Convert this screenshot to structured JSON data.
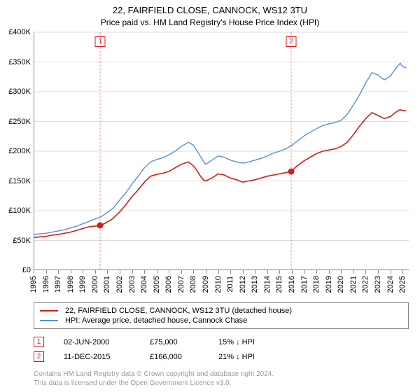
{
  "title": "22, FAIRFIELD CLOSE, CANNOCK, WS12 3TU",
  "subtitle": "Price paid vs. HM Land Registry's House Price Index (HPI)",
  "chart": {
    "type": "line",
    "background_color": "#ffffff",
    "grid_color": "#dddddd",
    "axis_color": "#888888",
    "ylabel_prefix": "£",
    "ylim": [
      0,
      400000
    ],
    "ytick_step": 50000,
    "ytick_labels": [
      "£0",
      "£50K",
      "£100K",
      "£150K",
      "£200K",
      "£250K",
      "£300K",
      "£350K",
      "£400K"
    ],
    "xlim": [
      1995,
      2025.5
    ],
    "xtick_start": 1995,
    "xtick_end": 2025,
    "xtick_step": 1,
    "xtick_rotation_deg": -90,
    "label_fontsize": 11,
    "title_fontsize": 13,
    "series": [
      {
        "name": "property",
        "label": "22, FAIRFIELD CLOSE, CANNOCK, WS12 3TU (detached house)",
        "color": "#d91a1a",
        "line_width": 1.6,
        "data": [
          [
            1995,
            55000
          ],
          [
            1995.5,
            56000
          ],
          [
            1996,
            57000
          ],
          [
            1996.5,
            59000
          ],
          [
            1997,
            60000
          ],
          [
            1997.5,
            62000
          ],
          [
            1998,
            64000
          ],
          [
            1998.5,
            67000
          ],
          [
            1999,
            70000
          ],
          [
            1999.5,
            73000
          ],
          [
            2000,
            74000
          ],
          [
            2000.42,
            75000
          ],
          [
            2000.9,
            80000
          ],
          [
            2001.4,
            86000
          ],
          [
            2002,
            98000
          ],
          [
            2002.5,
            110000
          ],
          [
            2003,
            124000
          ],
          [
            2003.5,
            135000
          ],
          [
            2004,
            148000
          ],
          [
            2004.5,
            158000
          ],
          [
            2005,
            161000
          ],
          [
            2005.5,
            163000
          ],
          [
            2006,
            166000
          ],
          [
            2006.5,
            172000
          ],
          [
            2007,
            178000
          ],
          [
            2007.6,
            182000
          ],
          [
            2008,
            175000
          ],
          [
            2008.2,
            170000
          ],
          [
            2008.5,
            160000
          ],
          [
            2008.8,
            152000
          ],
          [
            2009,
            150000
          ],
          [
            2009.5,
            155000
          ],
          [
            2010,
            162000
          ],
          [
            2010.5,
            160000
          ],
          [
            2011,
            155000
          ],
          [
            2011.5,
            152000
          ],
          [
            2012,
            148000
          ],
          [
            2012.5,
            150000
          ],
          [
            2013,
            152000
          ],
          [
            2013.5,
            155000
          ],
          [
            2014,
            158000
          ],
          [
            2014.5,
            160000
          ],
          [
            2015,
            162000
          ],
          [
            2015.5,
            164000
          ],
          [
            2015.94,
            166000
          ],
          [
            2016.4,
            175000
          ],
          [
            2017,
            184000
          ],
          [
            2017.5,
            190000
          ],
          [
            2018,
            196000
          ],
          [
            2018.5,
            200000
          ],
          [
            2019,
            202000
          ],
          [
            2019.5,
            204000
          ],
          [
            2020,
            208000
          ],
          [
            2020.5,
            215000
          ],
          [
            2021,
            228000
          ],
          [
            2021.5,
            242000
          ],
          [
            2022,
            255000
          ],
          [
            2022.5,
            265000
          ],
          [
            2023,
            260000
          ],
          [
            2023.5,
            255000
          ],
          [
            2024,
            258000
          ],
          [
            2024.4,
            265000
          ],
          [
            2024.8,
            270000
          ],
          [
            2025,
            268000
          ],
          [
            2025.3,
            268000
          ]
        ]
      },
      {
        "name": "hpi",
        "label": "HPI: Average price, detached house, Cannock Chase",
        "color": "#5b8fd6",
        "line_width": 1.4,
        "data": [
          [
            1995,
            60000
          ],
          [
            1995.5,
            61000
          ],
          [
            1996,
            62000
          ],
          [
            1996.5,
            64000
          ],
          [
            1997,
            66000
          ],
          [
            1997.5,
            68000
          ],
          [
            1998,
            71000
          ],
          [
            1998.5,
            74000
          ],
          [
            1999,
            78000
          ],
          [
            1999.5,
            82000
          ],
          [
            2000,
            86000
          ],
          [
            2000.5,
            90000
          ],
          [
            2001,
            97000
          ],
          [
            2001.5,
            105000
          ],
          [
            2002,
            118000
          ],
          [
            2002.5,
            130000
          ],
          [
            2003,
            145000
          ],
          [
            2003.5,
            158000
          ],
          [
            2004,
            172000
          ],
          [
            2004.5,
            182000
          ],
          [
            2005,
            186000
          ],
          [
            2005.5,
            189000
          ],
          [
            2006,
            194000
          ],
          [
            2006.5,
            200000
          ],
          [
            2007,
            208000
          ],
          [
            2007.6,
            215000
          ],
          [
            2008,
            210000
          ],
          [
            2008.3,
            200000
          ],
          [
            2008.6,
            190000
          ],
          [
            2008.9,
            180000
          ],
          [
            2009,
            178000
          ],
          [
            2009.5,
            185000
          ],
          [
            2010,
            192000
          ],
          [
            2010.5,
            190000
          ],
          [
            2011,
            185000
          ],
          [
            2011.5,
            182000
          ],
          [
            2012,
            180000
          ],
          [
            2012.5,
            182000
          ],
          [
            2013,
            185000
          ],
          [
            2013.5,
            188000
          ],
          [
            2014,
            192000
          ],
          [
            2014.5,
            197000
          ],
          [
            2015,
            200000
          ],
          [
            2015.5,
            204000
          ],
          [
            2016,
            210000
          ],
          [
            2016.5,
            218000
          ],
          [
            2017,
            226000
          ],
          [
            2017.5,
            232000
          ],
          [
            2018,
            238000
          ],
          [
            2018.5,
            243000
          ],
          [
            2019,
            246000
          ],
          [
            2019.5,
            248000
          ],
          [
            2020,
            252000
          ],
          [
            2020.5,
            262000
          ],
          [
            2021,
            278000
          ],
          [
            2021.5,
            295000
          ],
          [
            2022,
            315000
          ],
          [
            2022.5,
            332000
          ],
          [
            2023,
            328000
          ],
          [
            2023.5,
            320000
          ],
          [
            2024,
            326000
          ],
          [
            2024.4,
            338000
          ],
          [
            2024.8,
            348000
          ],
          [
            2025,
            342000
          ],
          [
            2025.3,
            340000
          ]
        ]
      }
    ],
    "markers": [
      {
        "id": "1",
        "x": 2000.42,
        "y": 75000,
        "color": "#d91a1a"
      },
      {
        "id": "2",
        "x": 2015.94,
        "y": 166000,
        "color": "#d91a1a"
      }
    ],
    "marker_line_color": "#d91a1a"
  },
  "legend": {
    "border_color": "#888888",
    "items": [
      {
        "color": "#d91a1a",
        "text": "22, FAIRFIELD CLOSE, CANNOCK, WS12 3TU (detached house)"
      },
      {
        "color": "#5b8fd6",
        "text": "HPI: Average price, detached house, Cannock Chase"
      }
    ]
  },
  "transactions": [
    {
      "flag": "1",
      "flag_color": "#d91a1a",
      "date": "02-JUN-2000",
      "price": "£75,000",
      "delta": "15% ↓ HPI"
    },
    {
      "flag": "2",
      "flag_color": "#d91a1a",
      "date": "11-DEC-2015",
      "price": "£166,000",
      "delta": "21% ↓ HPI"
    }
  ],
  "footer": {
    "line1": "Contains HM Land Registry data © Crown copyright and database right 2024.",
    "line2": "This data is licensed under the Open Government Licence v3.0."
  }
}
